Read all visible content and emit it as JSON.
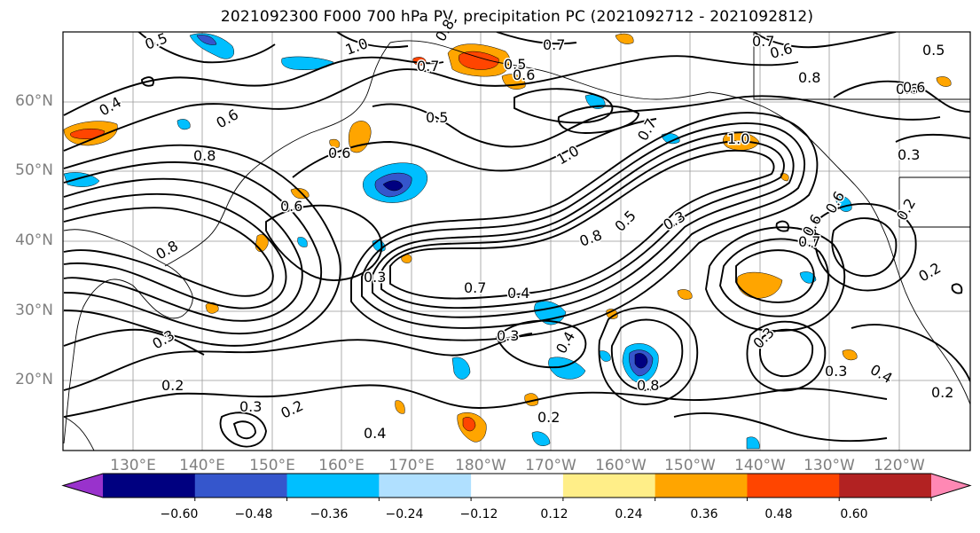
{
  "title": "2021092300 F000 700 hPa PV, precipitation PC (2021092712 - 2021092812)",
  "lat_labels": [
    "60°N",
    "50°N",
    "40°N",
    "30°N",
    "20°N"
  ],
  "lon_labels": [
    "130°E",
    "140°E",
    "150°E",
    "160°E",
    "170°E",
    "180°W",
    "170°W",
    "160°W",
    "150°W",
    "140°W",
    "130°W",
    "120°W"
  ],
  "colorbar": {
    "colors": [
      "#9932cc",
      "#000080",
      "#3556cc",
      "#00bfff",
      "#b0e0ff",
      "#ffffff",
      "#ffee88",
      "#ffa500",
      "#ff4500",
      "#b22222",
      "#ff88b4"
    ],
    "tick_labels": [
      "−0.60",
      "−0.48",
      "−0.36",
      "−0.24",
      "−0.12",
      "0.12",
      "0.24",
      "0.36",
      "0.48",
      "0.60"
    ]
  },
  "contour_labels": [
    {
      "text": "0.5"
    },
    {
      "text": "1.0"
    },
    {
      "text": "0.7"
    },
    {
      "text": "0.8"
    },
    {
      "text": "0.5"
    },
    {
      "text": "0.6"
    },
    {
      "text": "0.7"
    },
    {
      "text": "0.6"
    },
    {
      "text": "0.8"
    },
    {
      "text": "0.6"
    },
    {
      "text": "0.4"
    },
    {
      "text": "0.6"
    },
    {
      "text": "0.5"
    },
    {
      "text": "0.6"
    },
    {
      "text": "0.7"
    },
    {
      "text": "1.0"
    },
    {
      "text": "1.0"
    },
    {
      "text": "0.3"
    },
    {
      "text": "0.6"
    },
    {
      "text": "0.8"
    },
    {
      "text": "0.6"
    },
    {
      "text": "0.8"
    },
    {
      "text": "0.3"
    },
    {
      "text": "0.5"
    },
    {
      "text": "0.7"
    },
    {
      "text": "0.8"
    },
    {
      "text": "0.4"
    },
    {
      "text": "0.3"
    },
    {
      "text": "0.3"
    },
    {
      "text": "0.4"
    },
    {
      "text": "0.3"
    },
    {
      "text": "0.2"
    },
    {
      "text": "0.3"
    },
    {
      "text": "0.6"
    },
    {
      "text": "0.7"
    },
    {
      "text": "0.8"
    },
    {
      "text": "0.2"
    },
    {
      "text": "0.4"
    },
    {
      "text": "0.2"
    },
    {
      "text": "0.2"
    },
    {
      "text": "0.2"
    },
    {
      "text": "0.3"
    },
    {
      "text": "0.4"
    },
    {
      "text": "0.2"
    },
    {
      "text": "0.7"
    },
    {
      "text": "0.6"
    },
    {
      "text": "0.5"
    },
    {
      "text": "0.3"
    }
  ]
}
